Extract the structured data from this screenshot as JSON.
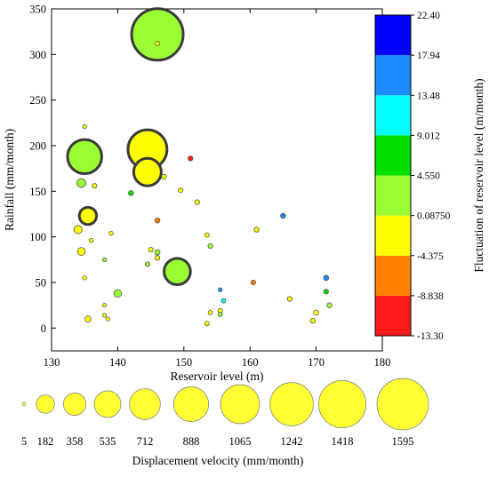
{
  "chart_data": {
    "type": "scatter",
    "xlabel": "Reservoir level (m)",
    "ylabel": "Rainfall (mm/month)",
    "xlim": [
      130,
      180
    ],
    "ylim": [
      -25,
      350
    ],
    "xticks": [
      130,
      140,
      150,
      160,
      170,
      180
    ],
    "yticks": [
      0,
      50,
      100,
      150,
      200,
      250,
      300,
      350
    ],
    "colorbar": {
      "title": "Fluctuation of reservoir level (m/month)",
      "placement": "right",
      "bands": [
        {
          "from": "-13.30",
          "to": "-8.838",
          "color": "#ff1a1a"
        },
        {
          "from": "-8.838",
          "to": "-4.375",
          "color": "#ff8000"
        },
        {
          "from": "-4.375",
          "to": "0.08750",
          "color": "#ffff00"
        },
        {
          "from": "0.08750",
          "to": "4.550",
          "color": "#99ff33"
        },
        {
          "from": "4.550",
          "to": "9.012",
          "color": "#00dd00"
        },
        {
          "from": "9.012",
          "to": "13.48",
          "color": "#00ffff"
        },
        {
          "from": "13.48",
          "to": "17.94",
          "color": "#1a8cff"
        },
        {
          "from": "17.94",
          "to": "22.40",
          "color": "#0000ff"
        }
      ],
      "labels": [
        "22.40",
        "17.94",
        "13.48",
        "9.012",
        "4.550",
        "0.08750",
        "-4.375",
        "-8.838",
        "-13.30"
      ]
    },
    "size_legend": {
      "title": "Displacement velocity (mm/month)",
      "placement": "bottom",
      "values": [
        5,
        182,
        358,
        535,
        712,
        888,
        1065,
        1242,
        1418,
        1595
      ],
      "labels": [
        "5",
        "182",
        "358",
        "535",
        "712",
        "888",
        "1065",
        "1242",
        "1418",
        "1595"
      ]
    },
    "points": [
      {
        "x": 146,
        "y": 322,
        "v": 1595,
        "f": 2.0
      },
      {
        "x": 146,
        "y": 312,
        "v": 40,
        "f": -1.0
      },
      {
        "x": 135,
        "y": 188,
        "v": 1020,
        "f": 2.5
      },
      {
        "x": 144.5,
        "y": 196,
        "v": 1180,
        "f": -1.5
      },
      {
        "x": 144.5,
        "y": 171,
        "v": 800,
        "f": -1.5
      },
      {
        "x": 149,
        "y": 62,
        "v": 760,
        "f": 2.5
      },
      {
        "x": 135.5,
        "y": 123,
        "v": 460,
        "f": -1.5
      },
      {
        "x": 134.5,
        "y": 159,
        "v": 180,
        "f": 2.0
      },
      {
        "x": 134,
        "y": 108,
        "v": 160,
        "f": -1.5
      },
      {
        "x": 134.5,
        "y": 84,
        "v": 150,
        "f": -1.5
      },
      {
        "x": 140,
        "y": 38,
        "v": 140,
        "f": 2.5
      },
      {
        "x": 135.5,
        "y": 10,
        "v": 90,
        "f": -1.5
      },
      {
        "x": 151,
        "y": 186,
        "v": 50,
        "f": -11.0
      },
      {
        "x": 142,
        "y": 148,
        "v": 55,
        "f": 6.5
      },
      {
        "x": 147,
        "y": 166,
        "v": 50,
        "f": -1.0
      },
      {
        "x": 146,
        "y": 118,
        "v": 55,
        "f": -6.5
      },
      {
        "x": 149.5,
        "y": 151,
        "v": 40,
        "f": -1.0
      },
      {
        "x": 152,
        "y": 138,
        "v": 50,
        "f": -1.0
      },
      {
        "x": 136.5,
        "y": 156,
        "v": 40,
        "f": -1.0
      },
      {
        "x": 135,
        "y": 221,
        "v": 20,
        "f": -1.0
      },
      {
        "x": 139,
        "y": 104,
        "v": 25,
        "f": -1.0
      },
      {
        "x": 138,
        "y": 75,
        "v": 20,
        "f": 1.5
      },
      {
        "x": 136,
        "y": 96,
        "v": 30,
        "f": -1.0
      },
      {
        "x": 135,
        "y": 55,
        "v": 25,
        "f": -1.0
      },
      {
        "x": 138,
        "y": 14,
        "v": 15,
        "f": -1.0
      },
      {
        "x": 138.5,
        "y": 10,
        "v": 15,
        "f": -1.0
      },
      {
        "x": 138,
        "y": 25,
        "v": 12,
        "f": -1.0
      },
      {
        "x": 146,
        "y": 83,
        "v": 60,
        "f": 2.0
      },
      {
        "x": 145,
        "y": 86,
        "v": 45,
        "f": -1.0
      },
      {
        "x": 146,
        "y": 77,
        "v": 45,
        "f": -1.0
      },
      {
        "x": 144.5,
        "y": 70,
        "v": 40,
        "f": 2.0
      },
      {
        "x": 153.5,
        "y": 102,
        "v": 35,
        "f": -1.0
      },
      {
        "x": 154,
        "y": 90,
        "v": 45,
        "f": 2.5
      },
      {
        "x": 155.5,
        "y": 42,
        "v": 20,
        "f": 15.0
      },
      {
        "x": 156,
        "y": 30,
        "v": 35,
        "f": 11.0
      },
      {
        "x": 155.5,
        "y": 19,
        "v": 40,
        "f": -1.0
      },
      {
        "x": 155.5,
        "y": 15,
        "v": 35,
        "f": 2.0
      },
      {
        "x": 153.5,
        "y": 5,
        "v": 40,
        "f": -1.0
      },
      {
        "x": 154,
        "y": 17,
        "v": 30,
        "f": -1.0
      },
      {
        "x": 161,
        "y": 108,
        "v": 55,
        "f": -1.0
      },
      {
        "x": 165,
        "y": 123,
        "v": 55,
        "f": 15.0
      },
      {
        "x": 160.5,
        "y": 50,
        "v": 45,
        "f": -6.5
      },
      {
        "x": 166,
        "y": 32,
        "v": 50,
        "f": -1.0
      },
      {
        "x": 171.5,
        "y": 55,
        "v": 60,
        "f": 15.0
      },
      {
        "x": 171.5,
        "y": 40,
        "v": 45,
        "f": 6.5
      },
      {
        "x": 172,
        "y": 25,
        "v": 50,
        "f": 2.5
      },
      {
        "x": 170,
        "y": 17,
        "v": 55,
        "f": -1.0
      },
      {
        "x": 169.5,
        "y": 8,
        "v": 50,
        "f": -1.0
      }
    ]
  }
}
